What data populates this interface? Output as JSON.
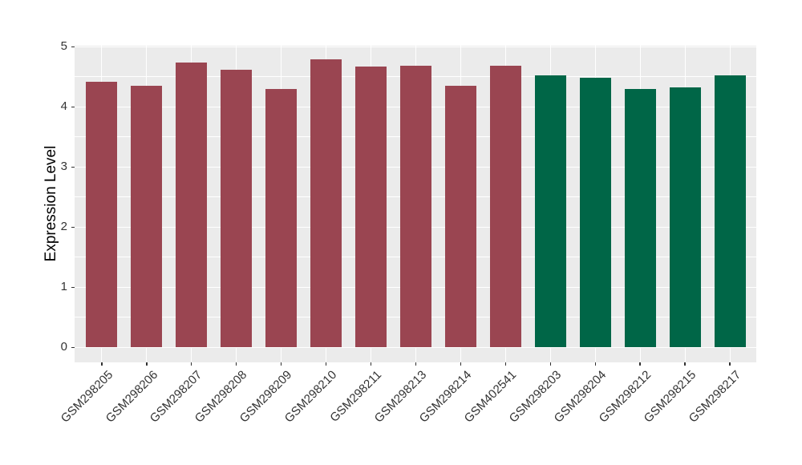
{
  "chart_data": {
    "type": "bar",
    "title": "",
    "xlabel": "",
    "ylabel": "Expression Level",
    "categories": [
      "GSM298205",
      "GSM298206",
      "GSM298207",
      "GSM298208",
      "GSM298209",
      "GSM298210",
      "GSM298211",
      "GSM298213",
      "GSM298214",
      "GSM402541",
      "GSM298203",
      "GSM298204",
      "GSM298212",
      "GSM298215",
      "GSM298217"
    ],
    "values": [
      4.42,
      4.35,
      4.74,
      4.62,
      4.3,
      4.79,
      4.67,
      4.68,
      4.35,
      4.68,
      4.52,
      4.49,
      4.3,
      4.33,
      4.52
    ],
    "bar_colors": [
      "#9A4551",
      "#9A4551",
      "#9A4551",
      "#9A4551",
      "#9A4551",
      "#9A4551",
      "#9A4551",
      "#9A4551",
      "#9A4551",
      "#9A4551",
      "#006647",
      "#006647",
      "#006647",
      "#006647",
      "#006647"
    ],
    "ylim": [
      0,
      5
    ],
    "yticks": [
      0,
      1,
      2,
      3,
      4,
      5
    ],
    "grid": "horizontal major+minor, vertical major at category centers",
    "legend_position": "none",
    "panel_bg": "#EBEBEB",
    "grid_color": "#FFFFFF",
    "axis_text_color": "#333333",
    "axis_title_color": "#000000"
  }
}
